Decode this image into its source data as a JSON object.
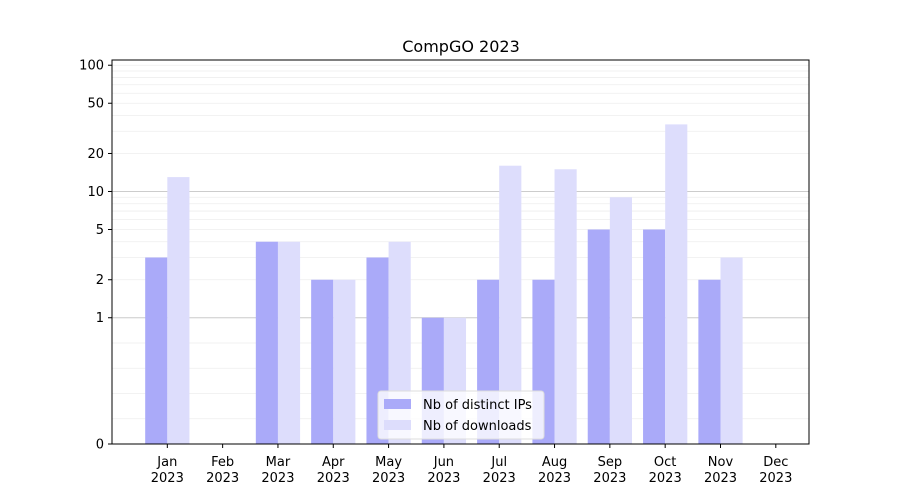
{
  "chart_data": {
    "type": "bar",
    "title": "CompGO 2023",
    "xlabel": "",
    "ylabel": "",
    "yscale": "symlog",
    "ylim": [
      0,
      110
    ],
    "yticks": [
      0,
      1,
      2,
      5,
      10,
      20,
      50,
      100
    ],
    "categories": [
      [
        "Jan",
        "2023"
      ],
      [
        "Feb",
        "2023"
      ],
      [
        "Mar",
        "2023"
      ],
      [
        "Apr",
        "2023"
      ],
      [
        "May",
        "2023"
      ],
      [
        "Jun",
        "2023"
      ],
      [
        "Jul",
        "2023"
      ],
      [
        "Aug",
        "2023"
      ],
      [
        "Sep",
        "2023"
      ],
      [
        "Oct",
        "2023"
      ],
      [
        "Nov",
        "2023"
      ],
      [
        "Dec",
        "2023"
      ]
    ],
    "series": [
      {
        "name": "Nb of distinct IPs",
        "color": "#aaaaf9",
        "values": [
          3,
          0,
          4,
          2,
          3,
          1,
          2,
          2,
          5,
          5,
          2,
          0
        ]
      },
      {
        "name": "Nb of downloads",
        "color": "#ddddfc",
        "values": [
          13,
          0,
          4,
          2,
          4,
          1,
          16,
          15,
          9,
          34,
          3,
          0
        ]
      }
    ],
    "legend": {
      "placement": "lower center"
    },
    "grid": true
  }
}
